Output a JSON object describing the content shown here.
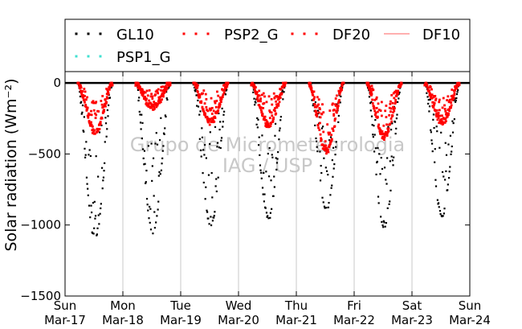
{
  "chart_data": {
    "type": "scatter",
    "title": "",
    "xlabel": "",
    "ylabel": "Solar radiation (Wm⁻²)",
    "ylim": [
      -1500,
      80
    ],
    "yticks": [
      0,
      -500,
      -1000,
      -1500
    ],
    "ytick_labels": [
      "0",
      "−500",
      "−1000",
      "−1500"
    ],
    "xlim": [
      "2013-03-17",
      "2013-03-24"
    ],
    "xticks": [
      {
        "day": "Sun",
        "date": "Mar-17"
      },
      {
        "day": "Mon",
        "date": "Mar-18"
      },
      {
        "day": "Tue",
        "date": "Mar-19"
      },
      {
        "day": "Wed",
        "date": "Mar-20"
      },
      {
        "day": "Thu",
        "date": "Mar-21"
      },
      {
        "day": "Fri",
        "date": "Mar-22"
      },
      {
        "day": "Sat",
        "date": "Mar-23"
      },
      {
        "day": "Sun",
        "date": "Mar-24"
      }
    ],
    "grid": "vertical",
    "legend_position": "top",
    "watermark": [
      "Grupo de Micrometeorologia",
      "IAG / USP"
    ],
    "series": [
      {
        "name": "GL10",
        "style": "dots",
        "color": "#000000",
        "daily_minimum": [
          {
            "day": "Mar-17",
            "value": -1100
          },
          {
            "day": "Mar-18",
            "value": -1050
          },
          {
            "day": "Mar-19",
            "value": -1000
          },
          {
            "day": "Mar-20",
            "value": -950
          },
          {
            "day": "Mar-21",
            "value": -890
          },
          {
            "day": "Mar-22",
            "value": -1020
          },
          {
            "day": "Mar-23",
            "value": -930
          }
        ]
      },
      {
        "name": "PSP2_G",
        "style": "dots",
        "color": "#ff0000",
        "daily_minimum": [
          {
            "day": "Mar-17",
            "value": -340
          },
          {
            "day": "Mar-18",
            "value": -180
          },
          {
            "day": "Mar-19",
            "value": -280
          },
          {
            "day": "Mar-20",
            "value": -300
          },
          {
            "day": "Mar-21",
            "value": -480
          },
          {
            "day": "Mar-22",
            "value": -380
          },
          {
            "day": "Mar-23",
            "value": -280
          }
        ]
      },
      {
        "name": "DF20",
        "style": "dots",
        "color": "#ff0000",
        "daily_minimum": [
          {
            "day": "Mar-17",
            "value": -350
          },
          {
            "day": "Mar-18",
            "value": -170
          },
          {
            "day": "Mar-19",
            "value": -270
          },
          {
            "day": "Mar-20",
            "value": -290
          },
          {
            "day": "Mar-21",
            "value": -470
          },
          {
            "day": "Mar-22",
            "value": -370
          },
          {
            "day": "Mar-23",
            "value": -270
          }
        ]
      },
      {
        "name": "DF10",
        "style": "line",
        "color": "#ff8080",
        "daily_minimum": []
      },
      {
        "name": "PSP1_G",
        "style": "dots",
        "color": "#40e0d0",
        "daily_minimum": []
      }
    ]
  }
}
